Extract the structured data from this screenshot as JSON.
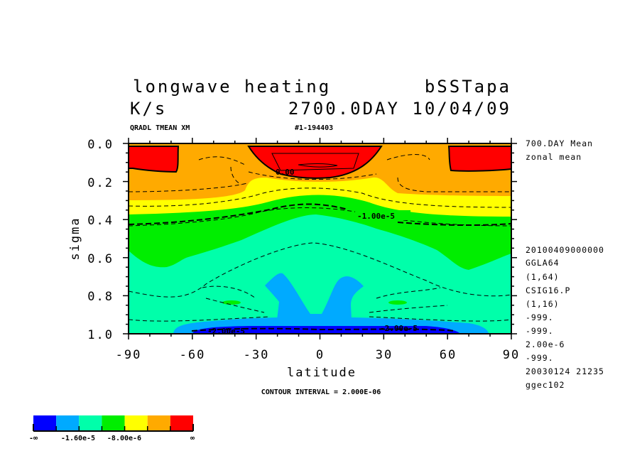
{
  "chart_data": {
    "type": "contour",
    "title": "longwave heating",
    "experiment": "bSSTapa",
    "units": "K/s",
    "time_label": "2700.0DAY 10/04/09",
    "variable_line": "QRADL TMEAN XM",
    "run_id": "#1-194403",
    "xlabel": "latitude",
    "ylabel": "sigma",
    "xlim": [
      -90,
      90
    ],
    "ylim": [
      1.0,
      0.0
    ],
    "xticks": [
      "-90",
      "-60",
      "-30",
      "0",
      "30",
      "60",
      "90"
    ],
    "yticks": [
      "0.0",
      "0.2",
      "0.4",
      "0.6",
      "0.8",
      "1.0"
    ],
    "contour_interval_text": "CONTOUR INTERVAL = 2.000E-06",
    "contour_interval": 2e-06,
    "contour_labels": [
      "0.00",
      "-1.00e-5",
      "-2.00e-5",
      "-2.00e-5"
    ],
    "side_info": [
      "700.DAY Mean",
      "zonal mean",
      "20100409000000",
      "GGLA64",
      "(1,64)",
      "CSIG16.P",
      "(1,16)",
      "-999.",
      "-999.",
      "2.00e-6",
      "-999.",
      "20030124  21235",
      "ggec102"
    ],
    "colorbar": {
      "colors": [
        "#0000ff",
        "#00aaff",
        "#00ffaa",
        "#00ee00",
        "#ffff00",
        "#ffaa00",
        "#ff0000"
      ],
      "boundaries": [
        -2.4e-05,
        -1.6e-05,
        -1.2e-05,
        -8e-06,
        -4e-06,
        0,
        0
      ],
      "labels": [
        "-∞",
        "-1.60e-5",
        "-8.00e-6",
        "∞"
      ]
    }
  }
}
